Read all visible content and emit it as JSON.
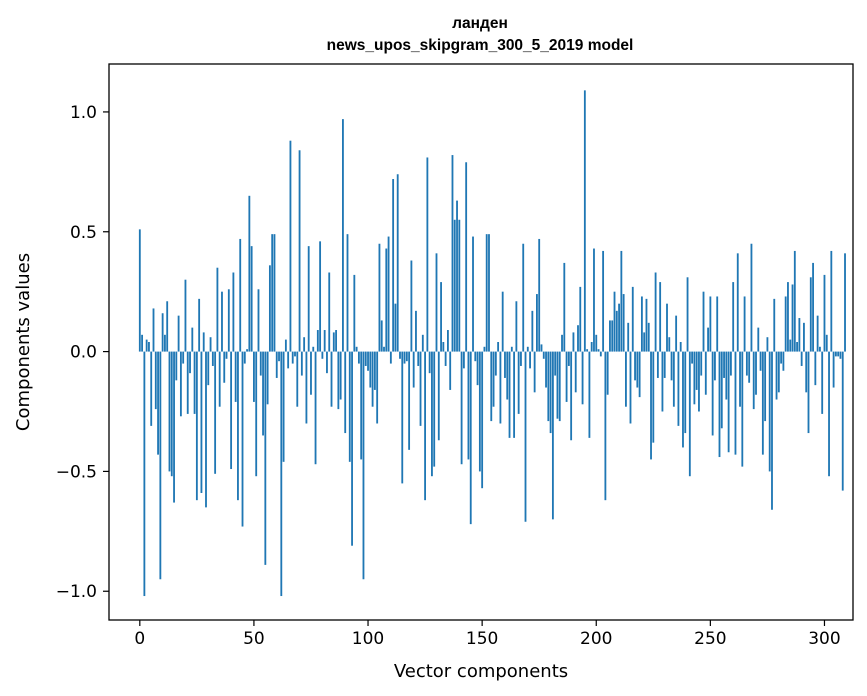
{
  "chart_data": {
    "type": "bar",
    "title": "ланден",
    "subtitle": "news_upos_skipgram_300_5_2019 model",
    "xlabel": "Vector components",
    "ylabel": "Components values",
    "xlim": [
      -13.5,
      312.5
    ],
    "ylim": [
      -1.12,
      1.2
    ],
    "xticks": [
      0,
      50,
      100,
      150,
      200,
      250,
      300
    ],
    "xtick_labels": [
      "0",
      "50",
      "100",
      "150",
      "200",
      "250",
      "300"
    ],
    "yticks": [
      -1.0,
      -0.5,
      0.0,
      0.5,
      1.0
    ],
    "ytick_labels": [
      "−1.0",
      "−0.5",
      "0.0",
      "0.5",
      "1.0"
    ],
    "grid": false,
    "color": "#1f77b4",
    "values": [
      0.51,
      0.07,
      -1.02,
      0.05,
      0.04,
      -0.31,
      0.18,
      -0.24,
      -0.43,
      -0.95,
      0.16,
      0.07,
      0.21,
      -0.5,
      -0.52,
      -0.63,
      -0.12,
      0.15,
      -0.27,
      -0.05,
      0.3,
      -0.26,
      -0.09,
      0.1,
      -0.26,
      -0.62,
      0.22,
      -0.59,
      0.08,
      -0.65,
      -0.14,
      0.06,
      -0.06,
      -0.51,
      0.35,
      -0.23,
      0.25,
      -0.13,
      -0.03,
      0.26,
      -0.49,
      0.33,
      -0.21,
      -0.62,
      0.47,
      -0.73,
      -0.05,
      0.01,
      0.65,
      0.44,
      -0.21,
      -0.52,
      0.26,
      -0.1,
      -0.35,
      -0.89,
      -0.22,
      0.36,
      0.49,
      0.49,
      -0.11,
      -0.04,
      -1.02,
      -0.46,
      0.05,
      -0.07,
      0.88,
      -0.05,
      -0.02,
      -0.23,
      0.84,
      -0.1,
      0.06,
      -0.3,
      0.44,
      -0.18,
      0.02,
      -0.47,
      0.09,
      0.46,
      -0.03,
      0.09,
      -0.09,
      0.33,
      -0.23,
      0.08,
      0.09,
      -0.24,
      -0.2,
      0.97,
      -0.34,
      0.49,
      -0.46,
      -0.81,
      0.32,
      0.02,
      -0.05,
      -0.45,
      -0.95,
      -0.06,
      -0.08,
      -0.15,
      -0.23,
      -0.16,
      -0.3,
      0.45,
      0.13,
      0.02,
      0.43,
      0.48,
      -0.05,
      0.72,
      0.2,
      0.74,
      -0.03,
      -0.55,
      -0.05,
      -0.04,
      -0.41,
      0.38,
      -0.15,
      0.17,
      -0.06,
      -0.31,
      0.07,
      -0.62,
      0.81,
      -0.09,
      -0.52,
      -0.48,
      0.41,
      -0.37,
      0.29,
      0.04,
      -0.06,
      0.09,
      -0.16,
      0.82,
      0.55,
      0.63,
      0.55,
      -0.47,
      -0.07,
      0.79,
      -0.45,
      -0.72,
      0.48,
      -0.04,
      -0.14,
      -0.5,
      -0.57,
      0.02,
      0.49,
      0.49,
      -0.29,
      -0.23,
      -0.1,
      0.04,
      -0.3,
      0.25,
      -0.11,
      -0.2,
      -0.36,
      0.02,
      -0.36,
      0.21,
      -0.26,
      -0.06,
      0.45,
      -0.71,
      0.02,
      -0.07,
      0.17,
      -0.17,
      0.24,
      0.47,
      0.03,
      -0.03,
      -0.15,
      -0.29,
      -0.34,
      -0.7,
      -0.1,
      -0.28,
      -0.29,
      0.07,
      0.37,
      -0.21,
      -0.06,
      -0.37,
      0.08,
      -0.17,
      0.11,
      0.27,
      -0.22,
      1.09,
      0.01,
      -0.36,
      0.04,
      0.43,
      0.07,
      0.01,
      -0.02,
      0.42,
      -0.62,
      -0.18,
      0.13,
      0.13,
      0.25,
      0.17,
      0.2,
      0.42,
      0.24,
      -0.23,
      0.12,
      -0.3,
      0.27,
      -0.12,
      -0.15,
      -0.19,
      0.23,
      0.08,
      0.22,
      0.12,
      -0.45,
      -0.38,
      0.33,
      -0.11,
      0.29,
      -0.25,
      -0.11,
      0.2,
      0.06,
      -0.12,
      -0.23,
      0.15,
      -0.31,
      0.04,
      -0.4,
      -0.34,
      0.31,
      -0.52,
      -0.05,
      -0.22,
      -0.16,
      -0.25,
      -0.1,
      0.25,
      -0.18,
      0.1,
      0.23,
      -0.35,
      -0.12,
      0.23,
      -0.44,
      -0.32,
      -0.11,
      -0.2,
      -0.42,
      -0.1,
      0.29,
      -0.43,
      0.41,
      -0.23,
      -0.48,
      0.23,
      -0.1,
      -0.13,
      0.45,
      -0.24,
      -0.18,
      0.1,
      -0.08,
      -0.43,
      -0.29,
      0.06,
      -0.5,
      -0.66,
      0.22,
      -0.2,
      -0.17,
      -0.05,
      -0.08,
      0.23,
      0.29,
      0.05,
      0.28,
      0.42,
      0.04,
      0.14,
      -0.06,
      0.12,
      -0.17,
      -0.34,
      0.31,
      0.37,
      -0.14,
      0.15,
      0.02,
      -0.26,
      0.32,
      0.07,
      -0.52,
      0.42,
      -0.15,
      -0.02,
      -0.02,
      -0.03,
      -0.58,
      0.41
    ]
  }
}
